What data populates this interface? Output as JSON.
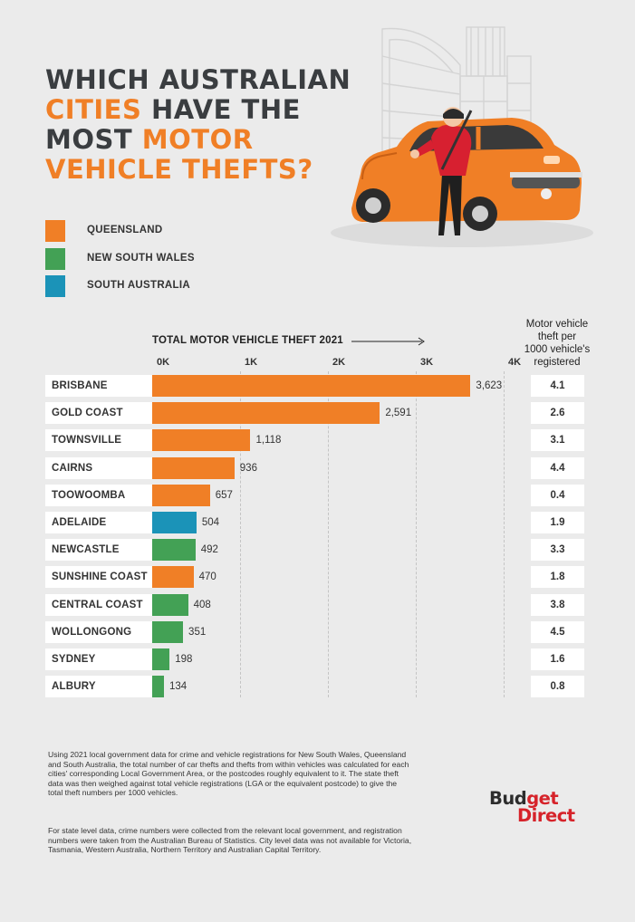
{
  "title": {
    "line1": "WHICH AUSTRALIAN",
    "line2_accent": "CITIES",
    "line2_rest": " HAVE THE",
    "line3_plain": "MOST ",
    "line3_accent": "MOTOR",
    "line4_accent": "VEHICLE THEFTS?"
  },
  "legend": [
    {
      "label": "QUEENSLAND",
      "color": "#f07f26"
    },
    {
      "label": "NEW SOUTH WALES",
      "color": "#43a155"
    },
    {
      "label": "SOUTH AUSTRALIA",
      "color": "#1b93b8"
    }
  ],
  "illustration": {
    "icon": "car-thief-illustration"
  },
  "chart_data": {
    "type": "bar",
    "orientation": "horizontal",
    "xlabel": "TOTAL MOTOR VEHICLE THEFT 2021",
    "xlim": [
      0,
      4000
    ],
    "ticks": [
      {
        "value": 0,
        "label": "0K"
      },
      {
        "value": 1000,
        "label": "1K"
      },
      {
        "value": 2000,
        "label": "2K"
      },
      {
        "value": 3000,
        "label": "3K"
      },
      {
        "value": 4000,
        "label": "4K"
      }
    ],
    "rate_header": [
      "Motor vehicle",
      "theft per",
      "1000 vehicle's",
      "registered"
    ],
    "rows": [
      {
        "city": "BRISBANE",
        "value": 3623,
        "label": "3,623",
        "state": "QUEENSLAND",
        "rate": "4.1"
      },
      {
        "city": "GOLD COAST",
        "value": 2591,
        "label": "2,591",
        "state": "QUEENSLAND",
        "rate": "2.6"
      },
      {
        "city": "TOWNSVILLE",
        "value": 1118,
        "label": "1,118",
        "state": "QUEENSLAND",
        "rate": "3.1"
      },
      {
        "city": "CAIRNS",
        "value": 936,
        "label": "936",
        "state": "QUEENSLAND",
        "rate": "4.4"
      },
      {
        "city": "TOOWOOMBA",
        "value": 657,
        "label": "657",
        "state": "QUEENSLAND",
        "rate": "0.4"
      },
      {
        "city": "ADELAIDE",
        "value": 504,
        "label": "504",
        "state": "SOUTH AUSTRALIA",
        "rate": "1.9"
      },
      {
        "city": "NEWCASTLE",
        "value": 492,
        "label": "492",
        "state": "NEW SOUTH WALES",
        "rate": "3.3"
      },
      {
        "city": "SUNSHINE COAST",
        "value": 470,
        "label": "470",
        "state": "QUEENSLAND",
        "rate": "1.8"
      },
      {
        "city": "CENTRAL COAST",
        "value": 408,
        "label": "408",
        "state": "NEW SOUTH WALES",
        "rate": "3.8"
      },
      {
        "city": "WOLLONGONG",
        "value": 351,
        "label": "351",
        "state": "NEW SOUTH WALES",
        "rate": "4.5"
      },
      {
        "city": "SYDNEY",
        "value": 198,
        "label": "198",
        "state": "NEW SOUTH WALES",
        "rate": "1.6"
      },
      {
        "city": "ALBURY",
        "value": 134,
        "label": "134",
        "state": "NEW SOUTH WALES",
        "rate": "0.8"
      }
    ]
  },
  "notes": {
    "paragraph1": "Using 2021 local government data for crime and vehicle registrations for New South Wales, Queensland and South Australia, the total number of car thefts and thefts from within vehicles was calculated for each cities' corresponding Local Government Area, or the postcodes roughly equivalent to it. The state theft data was then weighed against total vehicle registrations (LGA or the equivalent postcode) to give the total theft numbers per 1000 vehicles.",
    "paragraph2": "For state level data, crime numbers were collected from the relevant local government, and registration numbers were taken from the Australian Bureau of Statistics. City level data was not available for Victoria, Tasmania, Western Australia, Northern Territory and Australian Capital Territory."
  },
  "logo": {
    "part1": "Bud",
    "part1_red": "get",
    "part2": "Direct"
  }
}
